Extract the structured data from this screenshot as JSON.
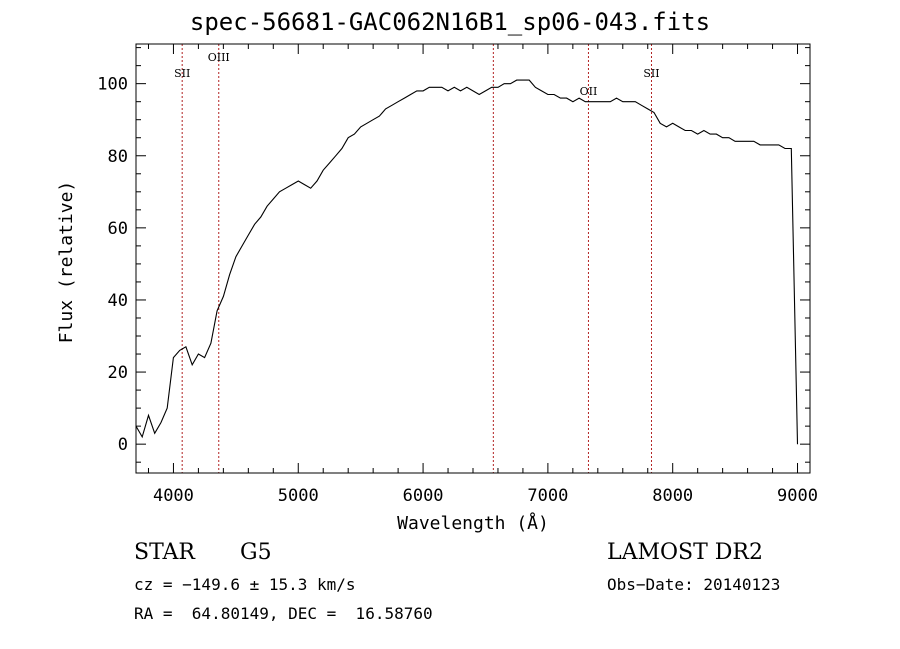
{
  "chart_data": {
    "type": "line",
    "title": "spec-56681-GAC062N16B1_sp06-043.fits",
    "xlabel": "Wavelength (Å)",
    "ylabel": "Flux (relative)",
    "xlim": [
      3700,
      9100
    ],
    "ylim": [
      -8,
      111
    ],
    "xticks": [
      4000,
      5000,
      6000,
      7000,
      8000,
      9000
    ],
    "yticks": [
      0,
      20,
      40,
      60,
      80,
      100
    ],
    "grid": false,
    "line_color": "#000000",
    "marker_color": "#b22222",
    "series": [
      {
        "x": [
          3700,
          3750,
          3800,
          3850,
          3900,
          3950,
          4000,
          4050,
          4100,
          4150,
          4200,
          4250,
          4300,
          4350,
          4400,
          4450,
          4500,
          4550,
          4600,
          4650,
          4700,
          4750,
          4800,
          4850,
          4900,
          4950,
          5000,
          5050,
          5100,
          5150,
          5200,
          5250,
          5300,
          5350,
          5400,
          5450,
          5500,
          5550,
          5600,
          5650,
          5700,
          5750,
          5800,
          5850,
          5900,
          5950,
          6000,
          6050,
          6100,
          6150,
          6200,
          6250,
          6300,
          6350,
          6400,
          6450,
          6500,
          6550,
          6600,
          6650,
          6700,
          6750,
          6800,
          6850,
          6900,
          6950,
          7000,
          7050,
          7100,
          7150,
          7200,
          7250,
          7300,
          7350,
          7400,
          7450,
          7500,
          7550,
          7600,
          7650,
          7700,
          7750,
          7800,
          7850,
          7900,
          7950,
          8000,
          8050,
          8100,
          8150,
          8200,
          8250,
          8300,
          8350,
          8400,
          8450,
          8500,
          8550,
          8600,
          8650,
          8700,
          8750,
          8800,
          8850,
          8900,
          8950,
          9000
        ],
        "values": [
          5,
          2,
          8,
          3,
          6,
          10,
          24,
          26,
          27,
          22,
          25,
          24,
          28,
          37,
          41,
          47,
          52,
          55,
          58,
          61,
          63,
          66,
          68,
          70,
          71,
          72,
          73,
          72,
          71,
          73,
          76,
          78,
          80,
          82,
          85,
          86,
          88,
          89,
          90,
          91,
          93,
          94,
          95,
          96,
          97,
          98,
          98,
          99,
          99,
          99,
          98,
          99,
          98,
          99,
          98,
          97,
          98,
          99,
          99,
          100,
          100,
          101,
          101,
          101,
          99,
          98,
          97,
          97,
          96,
          96,
          95,
          96,
          95,
          95,
          95,
          95,
          95,
          96,
          95,
          95,
          95,
          94,
          93,
          92,
          89,
          88,
          89,
          88,
          87,
          87,
          86,
          87,
          86,
          86,
          85,
          85,
          84,
          84,
          84,
          84,
          83,
          83,
          83,
          83,
          82,
          82,
          0
        ]
      }
    ],
    "line_markers": [
      {
        "label": "SII",
        "x": 4070
      },
      {
        "label": "OIII",
        "x": 4363
      },
      {
        "label": "",
        "x": 6563
      },
      {
        "label": "OII",
        "x": 7325
      },
      {
        "label": "SII",
        "x": 7830
      }
    ]
  },
  "info": {
    "class": "STAR",
    "subclass": "G5",
    "survey": "LAMOST DR2",
    "cz": "cz = −149.6 ± 15.3 km/s",
    "obs_date": "Obs−Date: 20140123",
    "coords": "RA =  64.80149, DEC =  16.58760"
  }
}
